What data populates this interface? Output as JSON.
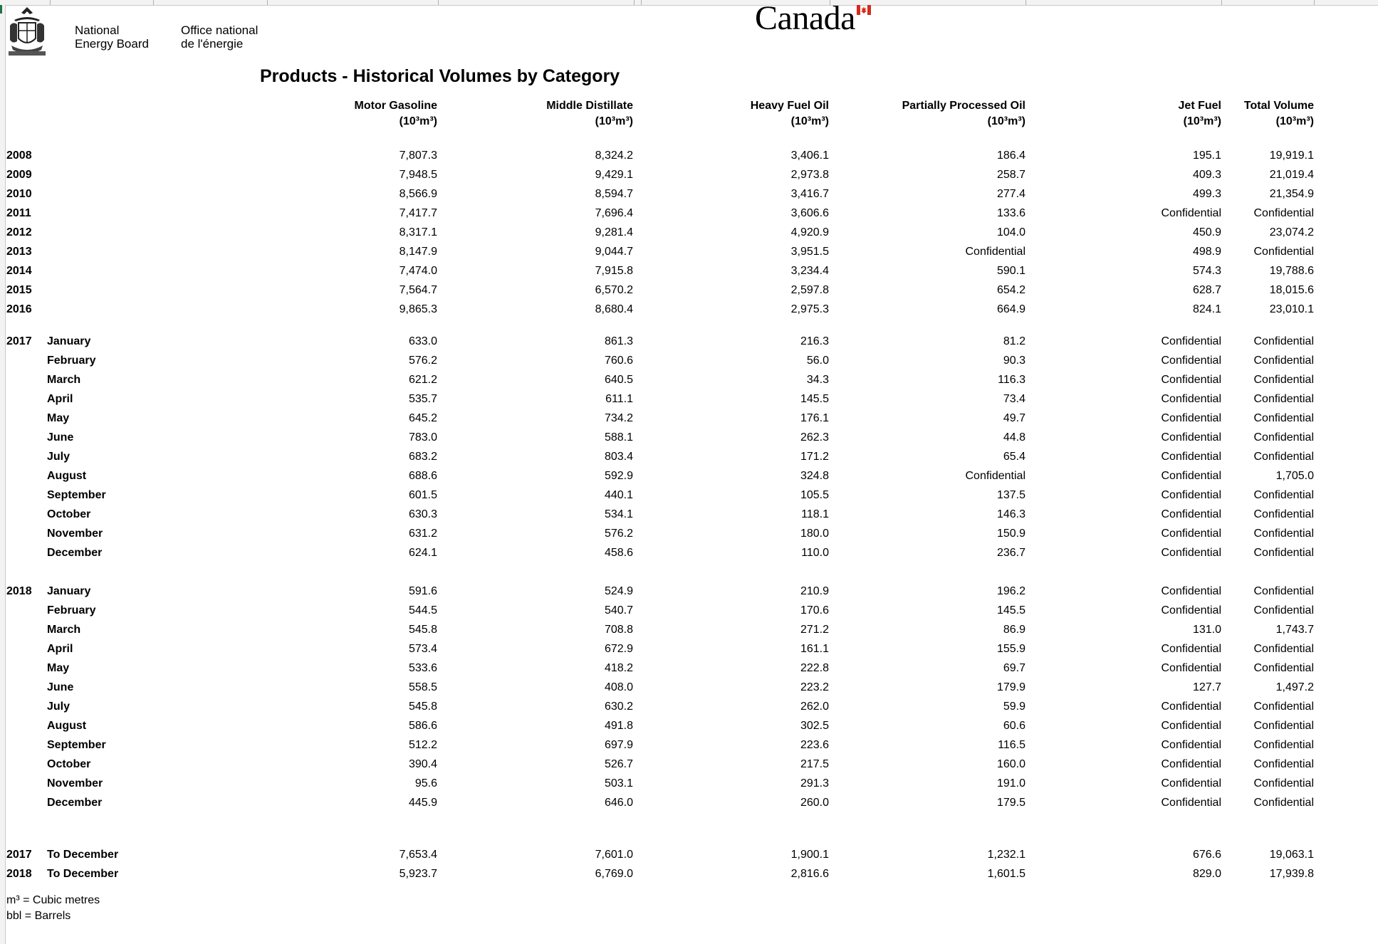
{
  "header": {
    "org_en_line1": "National",
    "org_en_line2": "Energy Board",
    "org_fr_line1": "Office national",
    "org_fr_line2": "de l'énergie",
    "wordmark": "Canada"
  },
  "title": "Products - Historical Volumes by Category",
  "columns": [
    {
      "name": "Motor Gasoline",
      "unit": "(10³m³)"
    },
    {
      "name": "Middle Distillate",
      "unit": "(10³m³)"
    },
    {
      "name": "Heavy Fuel Oil",
      "unit": "(10³m³)"
    },
    {
      "name": "Partially Processed Oil",
      "unit": "(10³m³)"
    },
    {
      "name": "Jet Fuel",
      "unit": "(10³m³)"
    },
    {
      "name": "Total Volume",
      "unit": "(10³m³)"
    }
  ],
  "annual_rows": [
    {
      "year": "2008",
      "values": [
        "7,807.3",
        "8,324.2",
        "3,406.1",
        "186.4",
        "195.1",
        "19,919.1"
      ]
    },
    {
      "year": "2009",
      "values": [
        "7,948.5",
        "9,429.1",
        "2,973.8",
        "258.7",
        "409.3",
        "21,019.4"
      ]
    },
    {
      "year": "2010",
      "values": [
        "8,566.9",
        "8,594.7",
        "3,416.7",
        "277.4",
        "499.3",
        "21,354.9"
      ]
    },
    {
      "year": "2011",
      "values": [
        "7,417.7",
        "7,696.4",
        "3,606.6",
        "133.6",
        "Confidential",
        "Confidential"
      ]
    },
    {
      "year": "2012",
      "values": [
        "8,317.1",
        "9,281.4",
        "4,920.9",
        "104.0",
        "450.9",
        "23,074.2"
      ]
    },
    {
      "year": "2013",
      "values": [
        "8,147.9",
        "9,044.7",
        "3,951.5",
        "Confidential",
        "498.9",
        "Confidential"
      ]
    },
    {
      "year": "2014",
      "values": [
        "7,474.0",
        "7,915.8",
        "3,234.4",
        "590.1",
        "574.3",
        "19,788.6"
      ]
    },
    {
      "year": "2015",
      "values": [
        "7,564.7",
        "6,570.2",
        "2,597.8",
        "654.2",
        "628.7",
        "18,015.6"
      ]
    },
    {
      "year": "2016",
      "values": [
        "9,865.3",
        "8,680.4",
        "2,975.3",
        "664.9",
        "824.1",
        "23,010.1"
      ]
    }
  ],
  "monthly_blocks": [
    {
      "year": "2017",
      "rows": [
        {
          "month": "January",
          "values": [
            "633.0",
            "861.3",
            "216.3",
            "81.2",
            "Confidential",
            "Confidential"
          ]
        },
        {
          "month": "February",
          "values": [
            "576.2",
            "760.6",
            "56.0",
            "90.3",
            "Confidential",
            "Confidential"
          ]
        },
        {
          "month": "March",
          "values": [
            "621.2",
            "640.5",
            "34.3",
            "116.3",
            "Confidential",
            "Confidential"
          ]
        },
        {
          "month": "April",
          "values": [
            "535.7",
            "611.1",
            "145.5",
            "73.4",
            "Confidential",
            "Confidential"
          ]
        },
        {
          "month": "May",
          "values": [
            "645.2",
            "734.2",
            "176.1",
            "49.7",
            "Confidential",
            "Confidential"
          ]
        },
        {
          "month": "June",
          "values": [
            "783.0",
            "588.1",
            "262.3",
            "44.8",
            "Confidential",
            "Confidential"
          ]
        },
        {
          "month": "July",
          "values": [
            "683.2",
            "803.4",
            "171.2",
            "65.4",
            "Confidential",
            "Confidential"
          ]
        },
        {
          "month": "August",
          "values": [
            "688.6",
            "592.9",
            "324.8",
            "Confidential",
            "Confidential",
            "1,705.0"
          ]
        },
        {
          "month": "September",
          "values": [
            "601.5",
            "440.1",
            "105.5",
            "137.5",
            "Confidential",
            "Confidential"
          ]
        },
        {
          "month": "October",
          "values": [
            "630.3",
            "534.1",
            "118.1",
            "146.3",
            "Confidential",
            "Confidential"
          ]
        },
        {
          "month": "November",
          "values": [
            "631.2",
            "576.2",
            "180.0",
            "150.9",
            "Confidential",
            "Confidential"
          ]
        },
        {
          "month": "December",
          "values": [
            "624.1",
            "458.6",
            "110.0",
            "236.7",
            "Confidential",
            "Confidential"
          ]
        }
      ]
    },
    {
      "year": "2018",
      "rows": [
        {
          "month": "January",
          "values": [
            "591.6",
            "524.9",
            "210.9",
            "196.2",
            "Confidential",
            "Confidential"
          ]
        },
        {
          "month": "February",
          "values": [
            "544.5",
            "540.7",
            "170.6",
            "145.5",
            "Confidential",
            "Confidential"
          ]
        },
        {
          "month": "March",
          "values": [
            "545.8",
            "708.8",
            "271.2",
            "86.9",
            "131.0",
            "1,743.7"
          ]
        },
        {
          "month": "April",
          "values": [
            "573.4",
            "672.9",
            "161.1",
            "155.9",
            "Confidential",
            "Confidential"
          ]
        },
        {
          "month": "May",
          "values": [
            "533.6",
            "418.2",
            "222.8",
            "69.7",
            "Confidential",
            "Confidential"
          ]
        },
        {
          "month": "June",
          "values": [
            "558.5",
            "408.0",
            "223.2",
            "179.9",
            "127.7",
            "1,497.2"
          ]
        },
        {
          "month": "July",
          "values": [
            "545.8",
            "630.2",
            "262.0",
            "59.9",
            "Confidential",
            "Confidential"
          ]
        },
        {
          "month": "August",
          "values": [
            "586.6",
            "491.8",
            "302.5",
            "60.6",
            "Confidential",
            "Confidential"
          ]
        },
        {
          "month": "September",
          "values": [
            "512.2",
            "697.9",
            "223.6",
            "116.5",
            "Confidential",
            "Confidential"
          ]
        },
        {
          "month": "October",
          "values": [
            "390.4",
            "526.7",
            "217.5",
            "160.0",
            "Confidential",
            "Confidential"
          ]
        },
        {
          "month": "November",
          "values": [
            "95.6",
            "503.1",
            "291.3",
            "191.0",
            "Confidential",
            "Confidential"
          ]
        },
        {
          "month": "December",
          "values": [
            "445.9",
            "646.0",
            "260.0",
            "179.5",
            "Confidential",
            "Confidential"
          ]
        }
      ]
    }
  ],
  "ytd_rows": [
    {
      "year": "2017",
      "label": "To December",
      "values": [
        "7,653.4",
        "7,601.0",
        "1,900.1",
        "1,232.1",
        "676.6",
        "19,063.1"
      ]
    },
    {
      "year": "2018",
      "label": "To December",
      "values": [
        "5,923.7",
        "6,769.0",
        "2,816.6",
        "1,601.5",
        "829.0",
        "17,939.8"
      ]
    }
  ],
  "footnotes": [
    "m³ = Cubic metres",
    "bbl = Barrels"
  ]
}
